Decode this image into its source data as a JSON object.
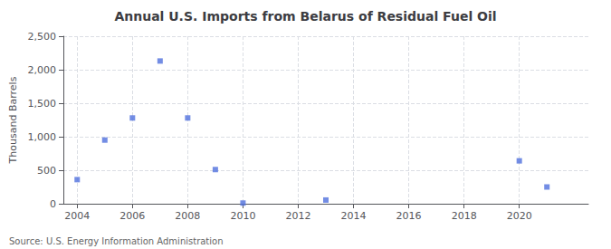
{
  "chart_data": {
    "type": "scatter",
    "title": "Annual U.S. Imports from Belarus of Residual Fuel Oil",
    "ylabel": "Thousand Barrels",
    "annotations": [
      "Source: U.S. Energy Information Administration"
    ],
    "x": [
      2004,
      2005,
      2006,
      2007,
      2008,
      2009,
      2010,
      2013,
      2020,
      2021
    ],
    "values": [
      360,
      950,
      1280,
      2130,
      1280,
      510,
      10,
      55,
      640,
      250
    ],
    "marker": "square",
    "xlim": [
      2003.5,
      2022.5
    ],
    "xticks": [
      2004,
      2006,
      2008,
      2010,
      2012,
      2014,
      2016,
      2018,
      2020
    ],
    "ylim": [
      0,
      2500
    ],
    "yticks": [
      0,
      500,
      {
        "value": 1000,
        "label": "1,000"
      },
      {
        "value": 1500,
        "label": "1,500"
      },
      {
        "value": 2000,
        "label": "2,000"
      },
      {
        "value": 2500,
        "label": "2,500"
      }
    ],
    "grid": true
  }
}
